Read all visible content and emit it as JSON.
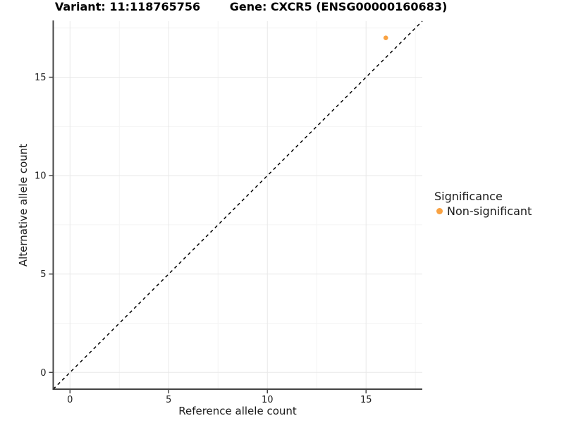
{
  "titles": {
    "left": "Variant: 11:118765756",
    "right": "Gene: CXCR5 (ENSG00000160683)"
  },
  "legend": {
    "title": "Significance",
    "items": [
      {
        "label": "Non-significant",
        "color": "#F9A242"
      }
    ]
  },
  "chart_data": {
    "type": "scatter",
    "titles": [
      "Variant: 11:118765756",
      "Gene: CXCR5 (ENSG00000160683)"
    ],
    "xlabel": "Reference allele count",
    "ylabel": "Alternative allele count",
    "xlim": [
      -0.85,
      17.85
    ],
    "ylim": [
      -0.85,
      17.85
    ],
    "xticks": [
      0,
      5,
      10,
      15
    ],
    "yticks": [
      0,
      5,
      10,
      15
    ],
    "x_minor_ticks": [
      2.5,
      7.5,
      12.5,
      17.5
    ],
    "y_minor_ticks": [
      2.5,
      7.5,
      12.5,
      17.5
    ],
    "grid": true,
    "legend_title": "Significance",
    "legend_position": "right",
    "reference_line": {
      "type": "identity y=x",
      "style": "dashed",
      "color": "#000000"
    },
    "series": [
      {
        "name": "Non-significant",
        "color": "#F9A242",
        "points": [
          {
            "x": 16,
            "y": 17
          }
        ]
      }
    ]
  },
  "style": {
    "point_color": "#F9A242",
    "grid_major": "#e8e8e8",
    "grid_minor": "#f4f4f4",
    "axis_line": "#444444",
    "tick_label_color": "#1f1f1f",
    "tick_label_size": 13
  }
}
